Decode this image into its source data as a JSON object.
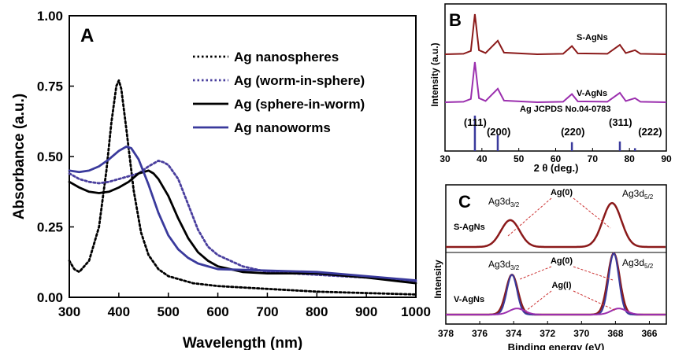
{
  "chart_data": [
    {
      "panel": "A",
      "type": "line",
      "xlabel": "Wavelength (nm)",
      "ylabel": "Absorbance (a.u.)",
      "xlim": [
        300,
        1000
      ],
      "ylim": [
        0,
        1
      ],
      "xticks": [
        "300",
        "400",
        "500",
        "600",
        "700",
        "800",
        "900",
        "1000"
      ],
      "yticks": [
        "0.00",
        "0.25",
        "0.50",
        "0.75",
        "1.00"
      ],
      "legend_position": "top-right",
      "series": [
        {
          "name": "Ag nanospheres",
          "color": "#000000",
          "style": "dotted",
          "points": [
            [
              300,
              0.13
            ],
            [
              310,
              0.1
            ],
            [
              320,
              0.09
            ],
            [
              340,
              0.13
            ],
            [
              360,
              0.25
            ],
            [
              375,
              0.45
            ],
            [
              385,
              0.62
            ],
            [
              395,
              0.75
            ],
            [
              400,
              0.77
            ],
            [
              405,
              0.74
            ],
            [
              415,
              0.6
            ],
            [
              430,
              0.38
            ],
            [
              445,
              0.23
            ],
            [
              460,
              0.15
            ],
            [
              480,
              0.1
            ],
            [
              500,
              0.075
            ],
            [
              550,
              0.05
            ],
            [
              600,
              0.04
            ],
            [
              700,
              0.03
            ],
            [
              800,
              0.02
            ],
            [
              900,
              0.015
            ],
            [
              1000,
              0.01
            ]
          ]
        },
        {
          "name": "Ag (worm-in-sphere)",
          "color": "#4a3f9e",
          "style": "dotted",
          "points": [
            [
              300,
              0.44
            ],
            [
              320,
              0.42
            ],
            [
              340,
              0.41
            ],
            [
              360,
              0.405
            ],
            [
              380,
              0.41
            ],
            [
              400,
              0.42
            ],
            [
              420,
              0.43
            ],
            [
              440,
              0.44
            ],
            [
              460,
              0.465
            ],
            [
              480,
              0.485
            ],
            [
              490,
              0.48
            ],
            [
              500,
              0.47
            ],
            [
              520,
              0.42
            ],
            [
              540,
              0.33
            ],
            [
              560,
              0.24
            ],
            [
              580,
              0.18
            ],
            [
              600,
              0.15
            ],
            [
              650,
              0.11
            ],
            [
              700,
              0.09
            ],
            [
              800,
              0.08
            ],
            [
              900,
              0.07
            ],
            [
              1000,
              0.055
            ]
          ]
        },
        {
          "name": "Ag (sphere-in-worm)",
          "color": "#000000",
          "style": "solid",
          "points": [
            [
              300,
              0.41
            ],
            [
              320,
              0.39
            ],
            [
              340,
              0.375
            ],
            [
              360,
              0.37
            ],
            [
              380,
              0.375
            ],
            [
              400,
              0.39
            ],
            [
              420,
              0.41
            ],
            [
              440,
              0.44
            ],
            [
              460,
              0.45
            ],
            [
              470,
              0.44
            ],
            [
              480,
              0.42
            ],
            [
              500,
              0.36
            ],
            [
              520,
              0.28
            ],
            [
              540,
              0.21
            ],
            [
              560,
              0.16
            ],
            [
              580,
              0.13
            ],
            [
              600,
              0.11
            ],
            [
              650,
              0.09
            ],
            [
              700,
              0.085
            ],
            [
              800,
              0.085
            ],
            [
              900,
              0.07
            ],
            [
              1000,
              0.05
            ]
          ]
        },
        {
          "name": "Ag nanoworms",
          "color": "#3a3a9c",
          "style": "solid",
          "points": [
            [
              300,
              0.45
            ],
            [
              320,
              0.445
            ],
            [
              340,
              0.45
            ],
            [
              360,
              0.465
            ],
            [
              380,
              0.49
            ],
            [
              400,
              0.52
            ],
            [
              415,
              0.535
            ],
            [
              425,
              0.53
            ],
            [
              440,
              0.49
            ],
            [
              460,
              0.4
            ],
            [
              480,
              0.3
            ],
            [
              500,
              0.22
            ],
            [
              520,
              0.17
            ],
            [
              540,
              0.14
            ],
            [
              560,
              0.12
            ],
            [
              580,
              0.11
            ],
            [
              600,
              0.1
            ],
            [
              700,
              0.095
            ],
            [
              800,
              0.09
            ],
            [
              900,
              0.075
            ],
            [
              1000,
              0.06
            ]
          ]
        }
      ]
    },
    {
      "panel": "B",
      "type": "line",
      "xlabel": "2 θ (deg.)",
      "ylabel": "Intensity (a.u.)",
      "xlim": [
        30,
        90
      ],
      "xticks": [
        "30",
        "40",
        "50",
        "60",
        "70",
        "80",
        "90"
      ],
      "annotations": [
        "S-AgNs",
        "V-AgNs",
        "Ag JCPDS No.04-0783"
      ],
      "series": [
        {
          "name": "S-AgNs",
          "color": "#8b1a1a",
          "points": [
            [
              30,
              0.02
            ],
            [
              35,
              0.03
            ],
            [
              37,
              0.1
            ],
            [
              38.1,
              1.0
            ],
            [
              39.2,
              0.12
            ],
            [
              41,
              0.05
            ],
            [
              44.3,
              0.35
            ],
            [
              46,
              0.06
            ],
            [
              55,
              0.02
            ],
            [
              62,
              0.03
            ],
            [
              64.4,
              0.22
            ],
            [
              66,
              0.04
            ],
            [
              74,
              0.03
            ],
            [
              77.4,
              0.25
            ],
            [
              79,
              0.05
            ],
            [
              81.5,
              0.12
            ],
            [
              83,
              0.03
            ],
            [
              90,
              0.02
            ]
          ]
        },
        {
          "name": "V-AgNs",
          "color": "#9b2fae",
          "points": [
            [
              30,
              0.02
            ],
            [
              35,
              0.03
            ],
            [
              37,
              0.1
            ],
            [
              38.1,
              1.0
            ],
            [
              39.2,
              0.12
            ],
            [
              41,
              0.05
            ],
            [
              44.3,
              0.35
            ],
            [
              46,
              0.06
            ],
            [
              55,
              0.02
            ],
            [
              62,
              0.03
            ],
            [
              64.4,
              0.22
            ],
            [
              66,
              0.04
            ],
            [
              74,
              0.03
            ],
            [
              77.4,
              0.25
            ],
            [
              79,
              0.05
            ],
            [
              81.5,
              0.12
            ],
            [
              83,
              0.03
            ],
            [
              90,
              0.02
            ]
          ]
        }
      ],
      "reference_peaks": [
        {
          "x": 38.1,
          "h": 1.0,
          "label": "(111)"
        },
        {
          "x": 44.3,
          "h": 0.45,
          "label": "(200)"
        },
        {
          "x": 64.4,
          "h": 0.25,
          "label": "(220)"
        },
        {
          "x": 77.4,
          "h": 0.27,
          "label": "(311)"
        },
        {
          "x": 81.5,
          "h": 0.08,
          "label": "(222)"
        }
      ]
    },
    {
      "panel": "C",
      "type": "line",
      "xlabel": "Binding energy (eV)",
      "ylabel": "Intensity",
      "xlim": [
        378,
        365
      ],
      "xticks": [
        "378",
        "376",
        "374",
        "372",
        "370",
        "368",
        "366"
      ],
      "annotations": {
        "top": {
          "sample": "S-AgNs",
          "ag0": "Ag(0)",
          "left_peak": "Ag3d",
          "left_sub": "3/2",
          "right_peak": "Ag3d",
          "right_sub": "5/2"
        },
        "bottom": {
          "sample": "V-AgNs",
          "ag0": "Ag(0)",
          "agI": "Ag(I)",
          "left_peak": "Ag3d",
          "left_sub": "3/2",
          "right_peak": "Ag3d",
          "right_sub": "5/2"
        }
      },
      "series": [
        {
          "name": "S-AgNs fit",
          "color": "#8b1a1a",
          "peaks": [
            [
              374.2,
              0.55
            ],
            [
              368.2,
              0.9
            ]
          ]
        },
        {
          "name": "V-AgNs Ag(0)",
          "color": "#8b1a1a",
          "peaks": [
            [
              374.1,
              0.65
            ],
            [
              368.1,
              1.0
            ]
          ]
        },
        {
          "name": "V-AgNs Ag(I)",
          "color": "#9b2fae",
          "peaks": [
            [
              373.8,
              0.1
            ],
            [
              367.8,
              0.1
            ]
          ]
        }
      ]
    }
  ]
}
